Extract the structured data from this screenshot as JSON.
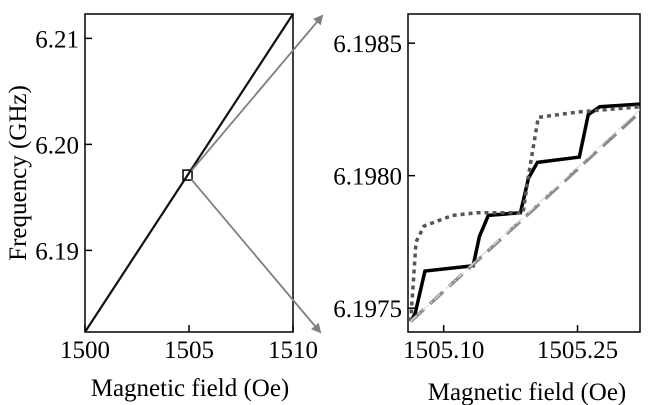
{
  "chart_data": [
    {
      "type": "line",
      "xlabel": "Magnetic field (Oe)",
      "ylabel": "Frequency (GHz)",
      "xlim": [
        1500,
        1510
      ],
      "ylim": [
        6.1823,
        6.2123
      ],
      "xticks": [
        1500,
        1505,
        1510
      ],
      "xtick_labels": [
        "1500",
        "1505",
        "1510"
      ],
      "yticks": [
        6.19,
        6.2,
        6.21
      ],
      "ytick_labels": [
        "6.19",
        "6.20",
        "6.21"
      ],
      "series": [
        {
          "x": [
            1500,
            1510
          ],
          "y": [
            6.1823,
            6.2123
          ]
        }
      ],
      "marker_box": {
        "x": 1504.93,
        "y": 6.19715
      }
    },
    {
      "type": "line",
      "xlabel": "Magnetic field (Oe)",
      "xlim": [
        1505.06,
        1505.32
      ],
      "ylim": [
        6.19741,
        6.19861
      ],
      "xticks": [
        1505.1,
        1505.25
      ],
      "xtick_labels": [
        "1505.10",
        "1505.25"
      ],
      "yticks": [
        6.1975,
        6.198,
        6.1985
      ],
      "ytick_labels": [
        "6.1975",
        "6.1980",
        "6.1985"
      ],
      "series": [
        {
          "style": "solid-black",
          "x": [
            1505.063,
            1505.068,
            1505.079,
            1505.133,
            1505.14,
            1505.15,
            1505.186,
            1505.195,
            1505.205,
            1505.252,
            1505.262,
            1505.275,
            1505.32
          ],
          "y": [
            6.19745,
            6.19748,
            6.19764,
            6.19766,
            6.19777,
            6.19785,
            6.19786,
            6.19799,
            6.19805,
            6.19807,
            6.19823,
            6.19826,
            6.19827
          ]
        },
        {
          "style": "dotted-darkgray",
          "x": [
            1505.063,
            1505.069,
            1505.078,
            1505.11,
            1505.137,
            1505.189,
            1505.195,
            1505.206,
            1505.25,
            1505.32
          ],
          "y": [
            6.19745,
            6.19775,
            6.19781,
            6.19785,
            6.19786,
            6.19786,
            6.198,
            6.19822,
            6.19824,
            6.19826
          ]
        },
        {
          "style": "dashed-gray",
          "x": [
            1505.063,
            1505.32
          ],
          "y": [
            6.19745,
            6.19824
          ]
        },
        {
          "style": "dashdot-lightgray",
          "x": [
            1505.063,
            1505.32
          ],
          "y": [
            6.19745,
            6.19825
          ]
        }
      ]
    }
  ]
}
